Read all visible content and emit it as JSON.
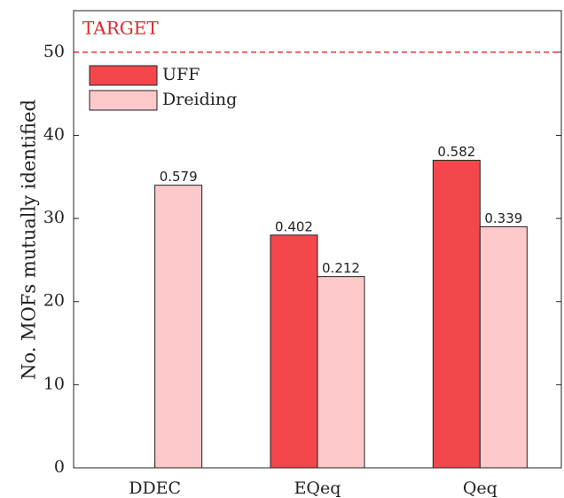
{
  "chart_data": {
    "type": "bar",
    "ylabel": "No. MOFs mutually identified",
    "categories": [
      "DDEC",
      "EQeq",
      "Qeq"
    ],
    "series": [
      {
        "name": "UFF",
        "color": "#f4474c",
        "values": [
          null,
          28,
          37
        ],
        "bar_labels": [
          null,
          "0.402",
          "0.582"
        ]
      },
      {
        "name": "Dreiding",
        "color": "#fdc9cb",
        "values": [
          34,
          23,
          29
        ],
        "bar_labels": [
          "0.579",
          "0.212",
          "0.339"
        ]
      }
    ],
    "target": {
      "value": 50,
      "label": "TARGET",
      "color": "#e0252b"
    },
    "ylim": [
      0,
      55
    ],
    "yticks": [
      0,
      10,
      20,
      30,
      40,
      50
    ],
    "legend": "upper-left"
  }
}
